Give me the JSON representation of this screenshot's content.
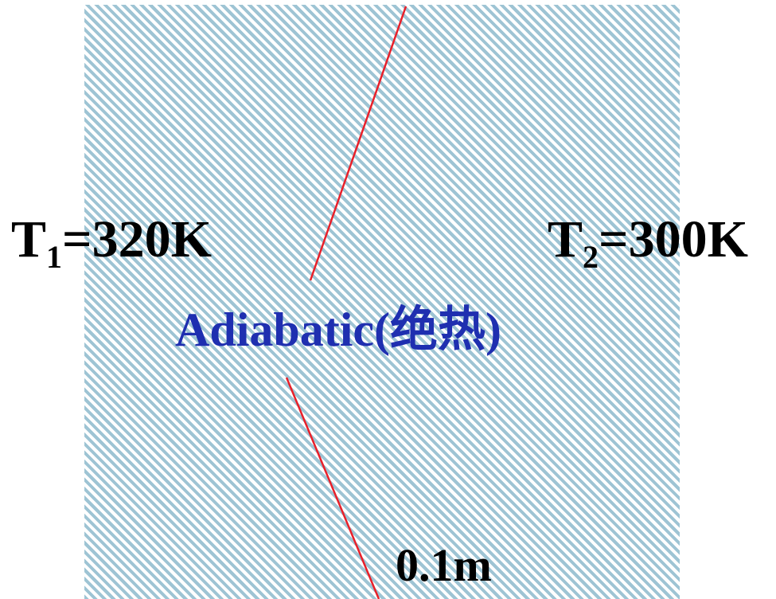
{
  "diagram": {
    "left_temperature": {
      "symbol": "T",
      "subscript": "1",
      "value": "=320K"
    },
    "right_temperature": {
      "symbol": "T",
      "subscript": "2",
      "value": "=300K"
    },
    "insulation_label": "Adiabatic(绝热)",
    "thickness_label": "0.1m",
    "colors": {
      "hatch": "#9ec4d4",
      "background": "#ffffff",
      "leader_line": "#e8202a",
      "insulation_text": "#1f2fb0",
      "temperature_text": "#000000"
    }
  }
}
